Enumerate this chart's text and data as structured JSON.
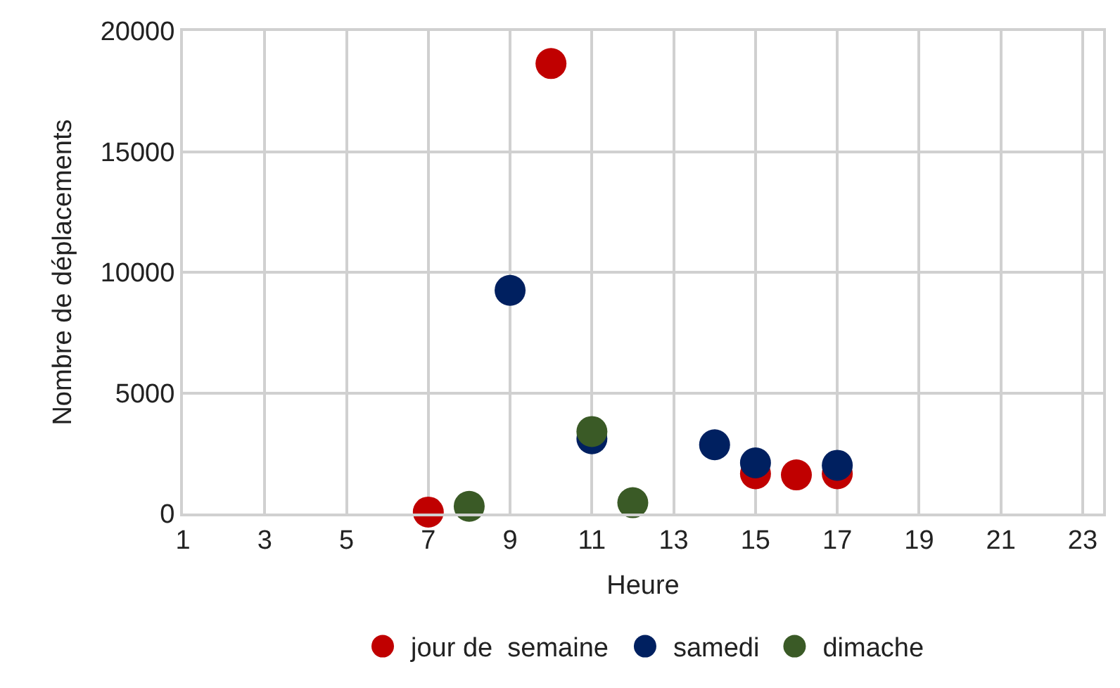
{
  "chart_data": {
    "type": "scatter",
    "xlabel": "Heure",
    "ylabel": "Nombre de déplacements",
    "xlim": [
      1,
      23.5
    ],
    "xticks": [
      1,
      3,
      5,
      7,
      9,
      11,
      13,
      15,
      17,
      19,
      21,
      23
    ],
    "ylim": [
      0,
      20000
    ],
    "yticks": [
      0,
      5000,
      10000,
      15000,
      20000
    ],
    "grid": true,
    "legend": "bottom",
    "marker": "circle",
    "series": [
      {
        "name": "jour de  semaine",
        "color": "#c00000",
        "x": [
          7,
          10,
          15,
          16,
          17
        ],
        "values": [
          60,
          18650,
          1650,
          1600,
          1650
        ]
      },
      {
        "name": "samedi",
        "color": "#002060",
        "x": [
          9,
          11,
          14,
          15,
          17
        ],
        "values": [
          9250,
          3100,
          2850,
          2100,
          2000
        ]
      },
      {
        "name": "dimache",
        "color": "#3a5a26",
        "x": [
          8,
          11,
          12
        ],
        "values": [
          300,
          3400,
          450
        ]
      }
    ]
  }
}
